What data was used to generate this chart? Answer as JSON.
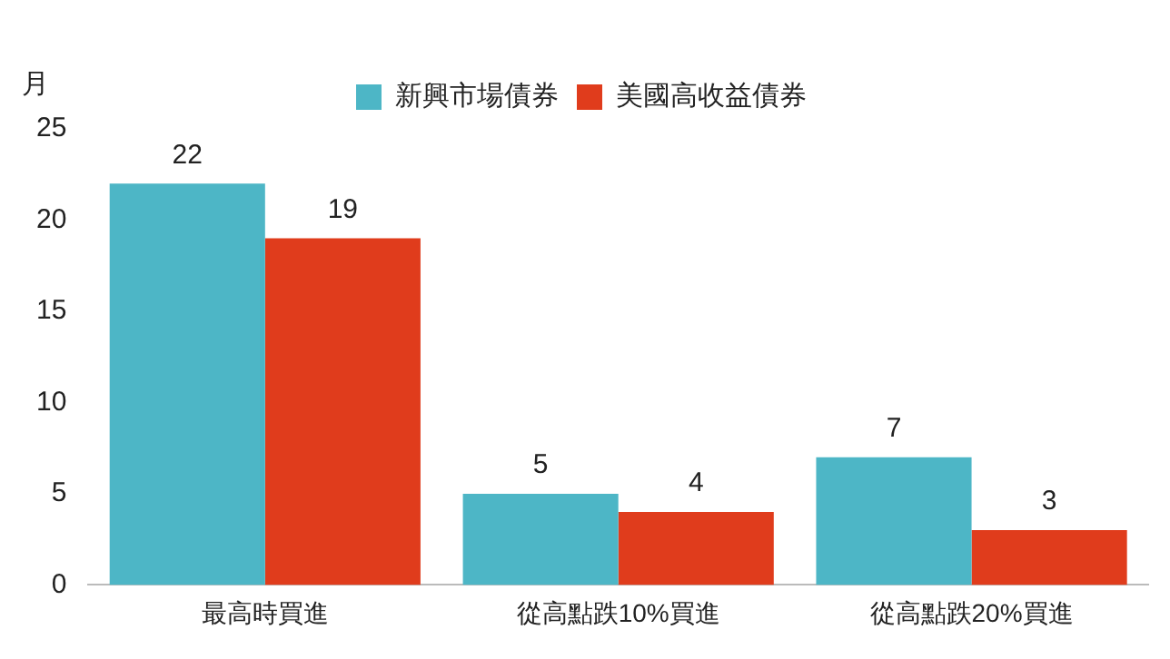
{
  "chart_data": {
    "type": "bar",
    "ylabel": "月",
    "categories": [
      "最高時買進",
      "從高點跌10%買進",
      "從高點跌20%買進"
    ],
    "series": [
      {
        "name": "新興市場債券",
        "color": "#4db6c6",
        "values": [
          22,
          5,
          7
        ]
      },
      {
        "name": "美國高收益債券",
        "color": "#e03c1c",
        "values": [
          19,
          4,
          3
        ]
      }
    ],
    "ylim": [
      0,
      25
    ],
    "yticks": [
      0,
      5,
      10,
      15,
      20,
      25
    ],
    "grid": false,
    "legend": "top",
    "data_labels": true
  }
}
